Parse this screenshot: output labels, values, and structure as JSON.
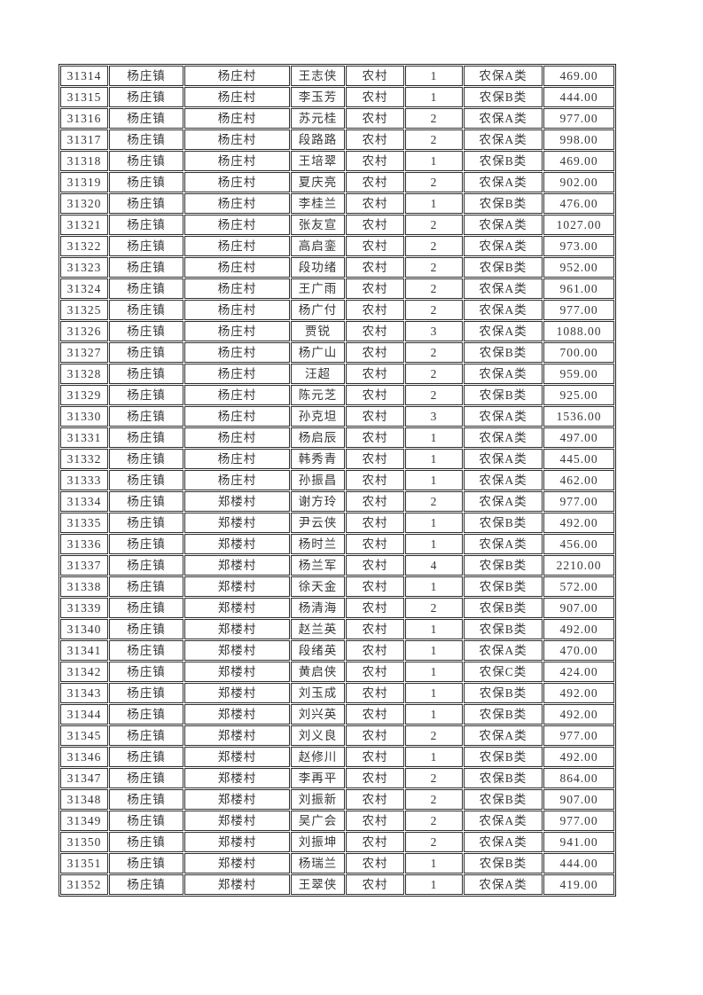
{
  "colors": {
    "background": "#ffffff",
    "ink": "#363636",
    "grid_line": "#2e2e2e"
  },
  "table": {
    "column_keys": [
      "id",
      "town",
      "village",
      "name",
      "residence",
      "count",
      "category",
      "amount"
    ],
    "rows": [
      {
        "id": "31314",
        "town": "杨庄镇",
        "village": "杨庄村",
        "name": "王志侠",
        "residence": "农村",
        "count": "1",
        "category": "农保A类",
        "amount": "469.00"
      },
      {
        "id": "31315",
        "town": "杨庄镇",
        "village": "杨庄村",
        "name": "李玉芳",
        "residence": "农村",
        "count": "1",
        "category": "农保B类",
        "amount": "444.00"
      },
      {
        "id": "31316",
        "town": "杨庄镇",
        "village": "杨庄村",
        "name": "苏元桂",
        "residence": "农村",
        "count": "2",
        "category": "农保A类",
        "amount": "977.00"
      },
      {
        "id": "31317",
        "town": "杨庄镇",
        "village": "杨庄村",
        "name": "段路路",
        "residence": "农村",
        "count": "2",
        "category": "农保A类",
        "amount": "998.00"
      },
      {
        "id": "31318",
        "town": "杨庄镇",
        "village": "杨庄村",
        "name": "王培翠",
        "residence": "农村",
        "count": "1",
        "category": "农保B类",
        "amount": "469.00"
      },
      {
        "id": "31319",
        "town": "杨庄镇",
        "village": "杨庄村",
        "name": "夏庆亮",
        "residence": "农村",
        "count": "2",
        "category": "农保A类",
        "amount": "902.00"
      },
      {
        "id": "31320",
        "town": "杨庄镇",
        "village": "杨庄村",
        "name": "李桂兰",
        "residence": "农村",
        "count": "1",
        "category": "农保B类",
        "amount": "476.00"
      },
      {
        "id": "31321",
        "town": "杨庄镇",
        "village": "杨庄村",
        "name": "张友宣",
        "residence": "农村",
        "count": "2",
        "category": "农保A类",
        "amount": "1027.00"
      },
      {
        "id": "31322",
        "town": "杨庄镇",
        "village": "杨庄村",
        "name": "高启銮",
        "residence": "农村",
        "count": "2",
        "category": "农保A类",
        "amount": "973.00"
      },
      {
        "id": "31323",
        "town": "杨庄镇",
        "village": "杨庄村",
        "name": "段功绪",
        "residence": "农村",
        "count": "2",
        "category": "农保B类",
        "amount": "952.00"
      },
      {
        "id": "31324",
        "town": "杨庄镇",
        "village": "杨庄村",
        "name": "王广雨",
        "residence": "农村",
        "count": "2",
        "category": "农保A类",
        "amount": "961.00"
      },
      {
        "id": "31325",
        "town": "杨庄镇",
        "village": "杨庄村",
        "name": "杨广付",
        "residence": "农村",
        "count": "2",
        "category": "农保A类",
        "amount": "977.00"
      },
      {
        "id": "31326",
        "town": "杨庄镇",
        "village": "杨庄村",
        "name": "贾锐",
        "residence": "农村",
        "count": "3",
        "category": "农保A类",
        "amount": "1088.00"
      },
      {
        "id": "31327",
        "town": "杨庄镇",
        "village": "杨庄村",
        "name": "杨广山",
        "residence": "农村",
        "count": "2",
        "category": "农保B类",
        "amount": "700.00"
      },
      {
        "id": "31328",
        "town": "杨庄镇",
        "village": "杨庄村",
        "name": "汪超",
        "residence": "农村",
        "count": "2",
        "category": "农保A类",
        "amount": "959.00"
      },
      {
        "id": "31329",
        "town": "杨庄镇",
        "village": "杨庄村",
        "name": "陈元芝",
        "residence": "农村",
        "count": "2",
        "category": "农保B类",
        "amount": "925.00"
      },
      {
        "id": "31330",
        "town": "杨庄镇",
        "village": "杨庄村",
        "name": "孙克坦",
        "residence": "农村",
        "count": "3",
        "category": "农保A类",
        "amount": "1536.00"
      },
      {
        "id": "31331",
        "town": "杨庄镇",
        "village": "杨庄村",
        "name": "杨启辰",
        "residence": "农村",
        "count": "1",
        "category": "农保A类",
        "amount": "497.00"
      },
      {
        "id": "31332",
        "town": "杨庄镇",
        "village": "杨庄村",
        "name": "韩秀青",
        "residence": "农村",
        "count": "1",
        "category": "农保A类",
        "amount": "445.00"
      },
      {
        "id": "31333",
        "town": "杨庄镇",
        "village": "杨庄村",
        "name": "孙振昌",
        "residence": "农村",
        "count": "1",
        "category": "农保A类",
        "amount": "462.00"
      },
      {
        "id": "31334",
        "town": "杨庄镇",
        "village": "郑楼村",
        "name": "谢方玲",
        "residence": "农村",
        "count": "2",
        "category": "农保A类",
        "amount": "977.00"
      },
      {
        "id": "31335",
        "town": "杨庄镇",
        "village": "郑楼村",
        "name": "尹云侠",
        "residence": "农村",
        "count": "1",
        "category": "农保B类",
        "amount": "492.00"
      },
      {
        "id": "31336",
        "town": "杨庄镇",
        "village": "郑楼村",
        "name": "杨时兰",
        "residence": "农村",
        "count": "1",
        "category": "农保A类",
        "amount": "456.00"
      },
      {
        "id": "31337",
        "town": "杨庄镇",
        "village": "郑楼村",
        "name": "杨兰军",
        "residence": "农村",
        "count": "4",
        "category": "农保B类",
        "amount": "2210.00"
      },
      {
        "id": "31338",
        "town": "杨庄镇",
        "village": "郑楼村",
        "name": "徐天金",
        "residence": "农村",
        "count": "1",
        "category": "农保B类",
        "amount": "572.00"
      },
      {
        "id": "31339",
        "town": "杨庄镇",
        "village": "郑楼村",
        "name": "杨清海",
        "residence": "农村",
        "count": "2",
        "category": "农保B类",
        "amount": "907.00"
      },
      {
        "id": "31340",
        "town": "杨庄镇",
        "village": "郑楼村",
        "name": "赵兰英",
        "residence": "农村",
        "count": "1",
        "category": "农保B类",
        "amount": "492.00"
      },
      {
        "id": "31341",
        "town": "杨庄镇",
        "village": "郑楼村",
        "name": "段绪英",
        "residence": "农村",
        "count": "1",
        "category": "农保A类",
        "amount": "470.00"
      },
      {
        "id": "31342",
        "town": "杨庄镇",
        "village": "郑楼村",
        "name": "黄启侠",
        "residence": "农村",
        "count": "1",
        "category": "农保C类",
        "amount": "424.00"
      },
      {
        "id": "31343",
        "town": "杨庄镇",
        "village": "郑楼村",
        "name": "刘玉成",
        "residence": "农村",
        "count": "1",
        "category": "农保B类",
        "amount": "492.00"
      },
      {
        "id": "31344",
        "town": "杨庄镇",
        "village": "郑楼村",
        "name": "刘兴英",
        "residence": "农村",
        "count": "1",
        "category": "农保B类",
        "amount": "492.00"
      },
      {
        "id": "31345",
        "town": "杨庄镇",
        "village": "郑楼村",
        "name": "刘义良",
        "residence": "农村",
        "count": "2",
        "category": "农保A类",
        "amount": "977.00"
      },
      {
        "id": "31346",
        "town": "杨庄镇",
        "village": "郑楼村",
        "name": "赵修川",
        "residence": "农村",
        "count": "1",
        "category": "农保B类",
        "amount": "492.00"
      },
      {
        "id": "31347",
        "town": "杨庄镇",
        "village": "郑楼村",
        "name": "李再平",
        "residence": "农村",
        "count": "2",
        "category": "农保B类",
        "amount": "864.00"
      },
      {
        "id": "31348",
        "town": "杨庄镇",
        "village": "郑楼村",
        "name": "刘振新",
        "residence": "农村",
        "count": "2",
        "category": "农保B类",
        "amount": "907.00"
      },
      {
        "id": "31349",
        "town": "杨庄镇",
        "village": "郑楼村",
        "name": "吴广会",
        "residence": "农村",
        "count": "2",
        "category": "农保A类",
        "amount": "977.00"
      },
      {
        "id": "31350",
        "town": "杨庄镇",
        "village": "郑楼村",
        "name": "刘振坤",
        "residence": "农村",
        "count": "2",
        "category": "农保A类",
        "amount": "941.00"
      },
      {
        "id": "31351",
        "town": "杨庄镇",
        "village": "郑楼村",
        "name": "杨瑞兰",
        "residence": "农村",
        "count": "1",
        "category": "农保B类",
        "amount": "444.00"
      },
      {
        "id": "31352",
        "town": "杨庄镇",
        "village": "郑楼村",
        "name": "王翠侠",
        "residence": "农村",
        "count": "1",
        "category": "农保A类",
        "amount": "419.00"
      }
    ]
  }
}
